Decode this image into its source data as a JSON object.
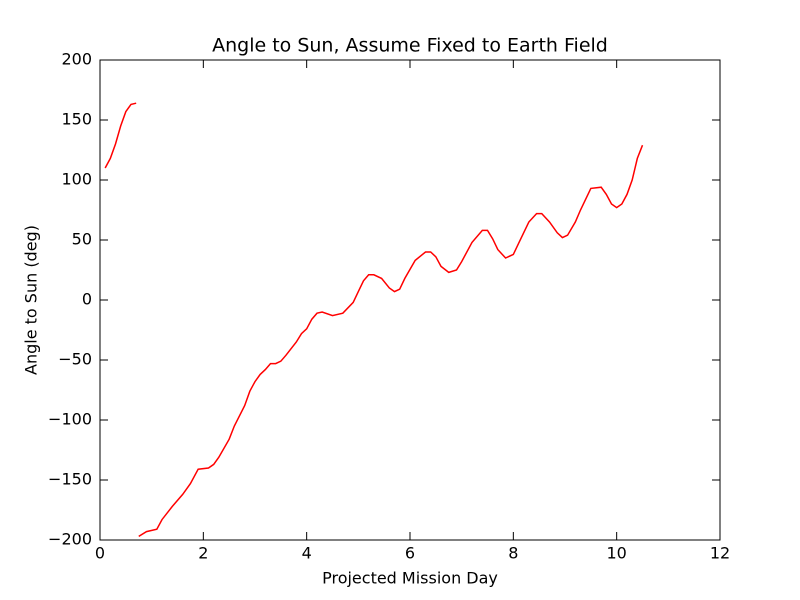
{
  "chart_data": {
    "type": "line",
    "title": "Angle to Sun, Assume Fixed to Earth Field",
    "xlabel": "Projected Mission Day",
    "ylabel": "Angle to Sun (deg)",
    "x": [
      0.1,
      0.2,
      0.3,
      0.4,
      0.5,
      0.6,
      0.7,
      0.72,
      0.75,
      0.9,
      1.1,
      1.2,
      1.4,
      1.6,
      1.75,
      1.9,
      2.1,
      2.2,
      2.3,
      2.5,
      2.6,
      2.8,
      2.9,
      3.0,
      3.1,
      3.2,
      3.3,
      3.4,
      3.5,
      3.6,
      3.8,
      3.9,
      4.0,
      4.1,
      4.2,
      4.3,
      4.5,
      4.7,
      4.9,
      5.0,
      5.1,
      5.2,
      5.3,
      5.45,
      5.6,
      5.7,
      5.8,
      5.9,
      6.1,
      6.3,
      6.4,
      6.5,
      6.6,
      6.75,
      6.9,
      7.0,
      7.2,
      7.4,
      7.5,
      7.6,
      7.7,
      7.85,
      8.0,
      8.1,
      8.3,
      8.45,
      8.55,
      8.7,
      8.85,
      8.95,
      9.05,
      9.2,
      9.3,
      9.5,
      9.7,
      9.8,
      9.9,
      10.0,
      10.1,
      10.2,
      10.3,
      10.4,
      10.5
    ],
    "series": [
      {
        "color": "#ff0000",
        "values": [
          110,
          118,
          130,
          145,
          157,
          163,
          164,
          null,
          -197,
          -193,
          -191,
          -183,
          -172,
          -162,
          -153,
          -141,
          -140,
          -137,
          -131,
          -116,
          -105,
          -88,
          -76,
          -68,
          -62,
          -58,
          -53,
          -53,
          -51,
          -46,
          -35,
          -28,
          -24,
          -16,
          -11,
          -10,
          -13,
          -11,
          -2,
          7,
          16,
          21,
          21,
          18,
          10,
          7,
          9,
          18,
          33,
          40,
          40,
          36,
          28,
          23,
          25,
          32,
          48,
          58,
          58,
          51,
          42,
          35,
          38,
          47,
          65,
          72,
          72,
          65,
          56,
          52,
          54,
          65,
          75,
          93,
          94,
          88,
          80,
          77,
          80,
          88,
          100,
          118,
          129
        ]
      }
    ],
    "xlim": [
      0,
      12
    ],
    "xticks": [
      0,
      2,
      4,
      6,
      8,
      10,
      12
    ],
    "ylim": [
      -200,
      200
    ],
    "yticks": [
      {
        "value": -200,
        "label": "−200"
      },
      {
        "value": -150,
        "label": "−150"
      },
      {
        "value": -100,
        "label": "−100"
      },
      {
        "value": -50,
        "label": "−50"
      },
      0,
      50,
      100,
      150,
      200
    ],
    "grid": false
  }
}
